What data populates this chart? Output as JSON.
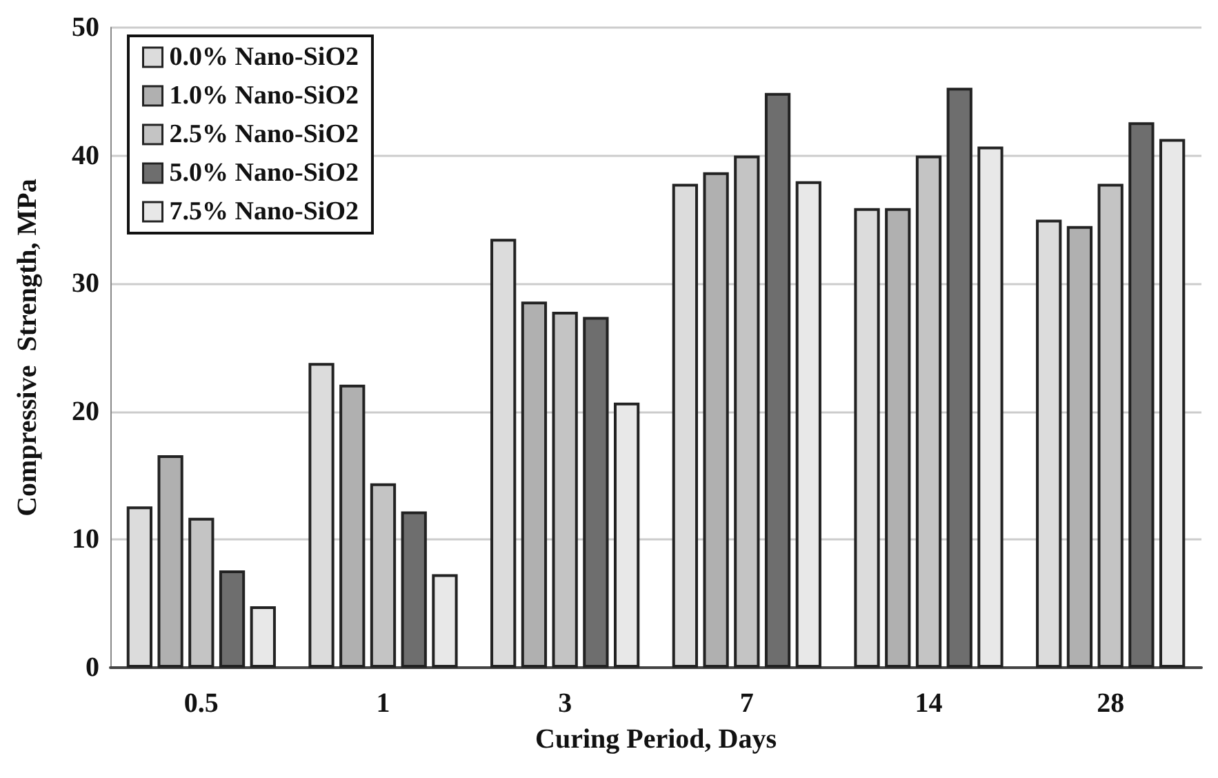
{
  "chart_data": {
    "type": "bar",
    "xlabel": "Curing Period, Days",
    "ylabel": "Compressive  Strength, MPa",
    "categories": [
      "0.5",
      "1",
      "3",
      "7",
      "14",
      "28"
    ],
    "series": [
      {
        "name": "0.0% Nano-SiO2",
        "color": "#dcdcdc",
        "values": [
          12.6,
          23.8,
          33.5,
          37.8,
          35.9,
          35.0
        ]
      },
      {
        "name": "1.0% Nano-SiO2",
        "color": "#b0b0b0",
        "values": [
          16.6,
          22.1,
          28.6,
          38.7,
          35.9,
          34.5
        ]
      },
      {
        "name": "2.5% Nano-SiO2",
        "color": "#c4c4c4",
        "values": [
          11.7,
          14.4,
          27.8,
          40.0,
          40.0,
          37.8
        ]
      },
      {
        "name": "5.0% Nano-SiO2",
        "color": "#6e6e6e",
        "values": [
          7.6,
          12.2,
          27.4,
          44.9,
          45.3,
          42.6
        ]
      },
      {
        "name": "7.5% Nano-SiO2",
        "color": "#e8e8e8",
        "values": [
          4.8,
          7.3,
          20.7,
          38.0,
          40.7,
          41.3
        ]
      }
    ],
    "ylim": [
      0,
      50
    ],
    "yticks": [
      0,
      10,
      20,
      30,
      40,
      50
    ],
    "grid": "y",
    "legend": "top left"
  }
}
